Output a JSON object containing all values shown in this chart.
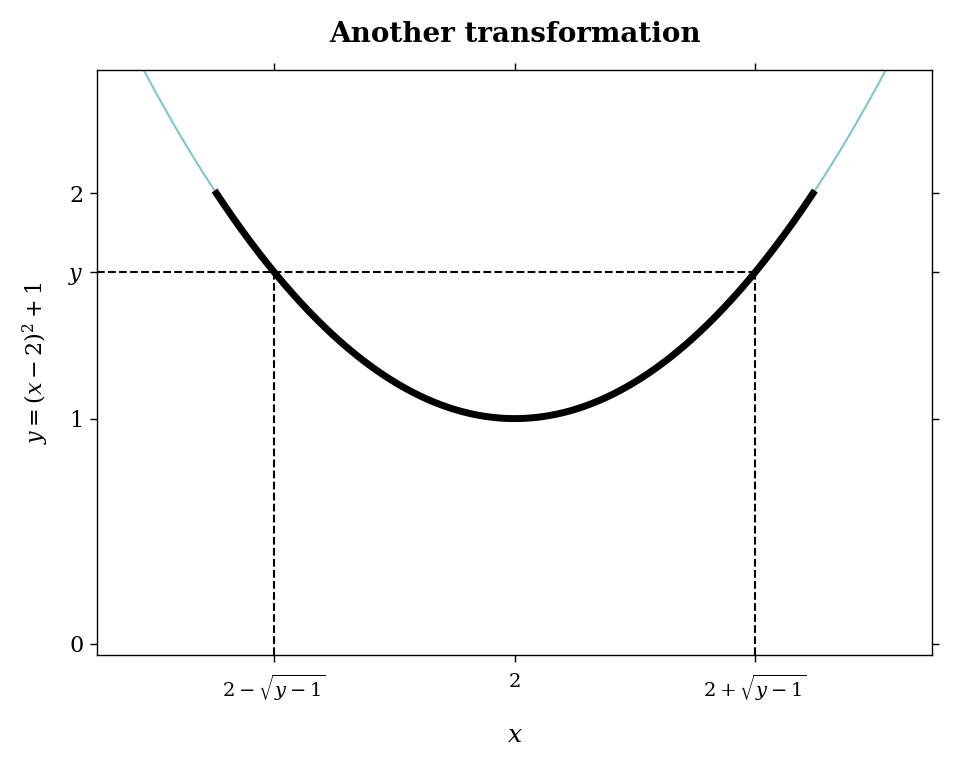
{
  "title": "Another transformation",
  "title_fontsize": 20,
  "ylabel": "y = (x - 2)^2 + 1",
  "xlabel": "x",
  "xlim": [
    0.6,
    3.4
  ],
  "ylim": [
    -0.05,
    2.55
  ],
  "y_value": 1.65,
  "x_min_transform": 1.0,
  "x_max_transform": 3.0,
  "x_center": 2.0,
  "thick_color": "#000000",
  "thin_color": "#7ec8c8",
  "thick_linewidth": 5.0,
  "thin_linewidth": 1.5,
  "dashed_color": "#000000",
  "dashed_linewidth": 1.5,
  "ytick_values": [
    0,
    1,
    2
  ],
  "ytick_labels": [
    "0",
    "1",
    "2"
  ],
  "background_color": "#ffffff",
  "axes_background": "#ffffff",
  "tick_fontsize": 16,
  "label_fontsize": 18,
  "ylabel_fontsize": 16
}
